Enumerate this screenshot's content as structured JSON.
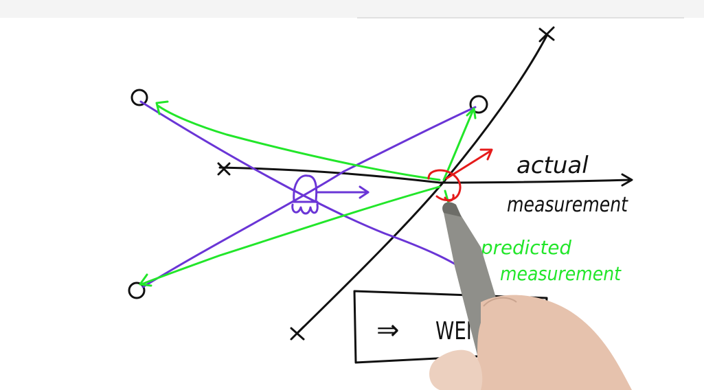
{
  "labels": {
    "actual_line1": "actual",
    "actual_line2": "measurement",
    "predicted_line1": "predicted",
    "predicted_line2": "measurement",
    "box_arrow": "⇒",
    "box_word": "WEIGHT"
  },
  "colors": {
    "ink": "#111111",
    "purple": "#6a35d6",
    "green": "#22e62a",
    "red": "#e51a1a",
    "top_strip": "#f2f2f2",
    "pencil": "#8f8f8a",
    "skin": "#e9c9b4"
  }
}
